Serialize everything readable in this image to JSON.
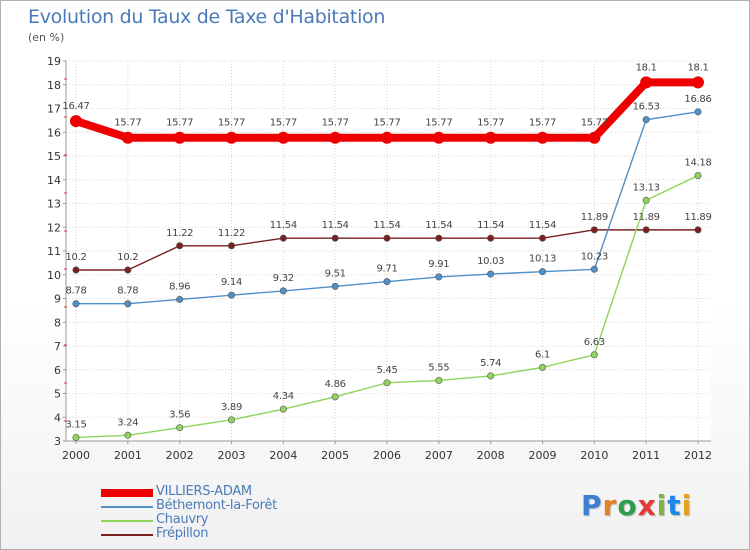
{
  "header": {
    "title": "Evolution du Taux de Taxe d'Habitation",
    "unit": "(en %)"
  },
  "logo": {
    "text": "Proxiti",
    "letter_colors": [
      "#3b7fd0",
      "#e67e22",
      "#2e9e4d",
      "#e53935",
      "#7cb342",
      "#1e88e5",
      "#e6a21c"
    ]
  },
  "chart_data": {
    "type": "line",
    "title": "Evolution du Taux de Taxe d'Habitation",
    "ylabel": "(en %)",
    "xlabel": "",
    "ylim": [
      3,
      19
    ],
    "yticks": [
      3,
      4,
      5,
      6,
      7,
      8,
      9,
      10,
      11,
      12,
      13,
      14,
      15,
      16,
      17,
      18,
      19
    ],
    "grid": true,
    "legend_position": "bottom-left",
    "categories": [
      "2000",
      "2001",
      "2002",
      "2003",
      "2004",
      "2005",
      "2006",
      "2007",
      "2008",
      "2009",
      "2010",
      "2011",
      "2012"
    ],
    "series": [
      {
        "name": "VILLIERS-ADAM",
        "color": "#ee0000",
        "values": [
          16.47,
          15.77,
          15.77,
          15.77,
          15.77,
          15.77,
          15.77,
          15.77,
          15.77,
          15.77,
          15.77,
          18.1,
          18.1
        ],
        "labels": [
          "16.47",
          "15.77",
          "15.77",
          "15.77",
          "15.77",
          "15.77",
          "15.77",
          "15.77",
          "15.77",
          "15.77",
          "15.77",
          "18.1",
          "18.1"
        ]
      },
      {
        "name": "Béthemont-la-Forêt",
        "color": "#4f90c8",
        "values": [
          8.78,
          8.78,
          8.96,
          9.14,
          9.32,
          9.51,
          9.71,
          9.91,
          10.03,
          10.13,
          10.23,
          16.53,
          16.86
        ],
        "labels": [
          "8.78",
          "8.78",
          "8.96",
          "9.14",
          "9.32",
          "9.51",
          "9.71",
          "9.91",
          "10.03",
          "10.13",
          "10.23",
          "16.53",
          "16.86"
        ]
      },
      {
        "name": "Chauvry",
        "color": "#8fd45a",
        "values": [
          3.15,
          3.24,
          3.56,
          3.89,
          4.34,
          4.86,
          5.45,
          5.55,
          5.74,
          6.1,
          6.63,
          13.13,
          14.18
        ],
        "labels": [
          "3.15",
          "3.24",
          "3.56",
          "3.89",
          "4.34",
          "4.86",
          "5.45",
          "5.55",
          "5.74",
          "6.1",
          "6.63",
          "13.13",
          "14.18"
        ]
      },
      {
        "name": "Frépillon",
        "color": "#7a2020",
        "values": [
          10.2,
          10.2,
          11.22,
          11.22,
          11.54,
          11.54,
          11.54,
          11.54,
          11.54,
          11.54,
          11.89,
          11.89,
          11.89
        ],
        "labels": [
          "10.2",
          "10.2",
          "11.22",
          "11.22",
          "11.54",
          "11.54",
          "11.54",
          "11.54",
          "11.54",
          "11.54",
          "11.89",
          "11.89",
          "11.89"
        ]
      }
    ]
  }
}
